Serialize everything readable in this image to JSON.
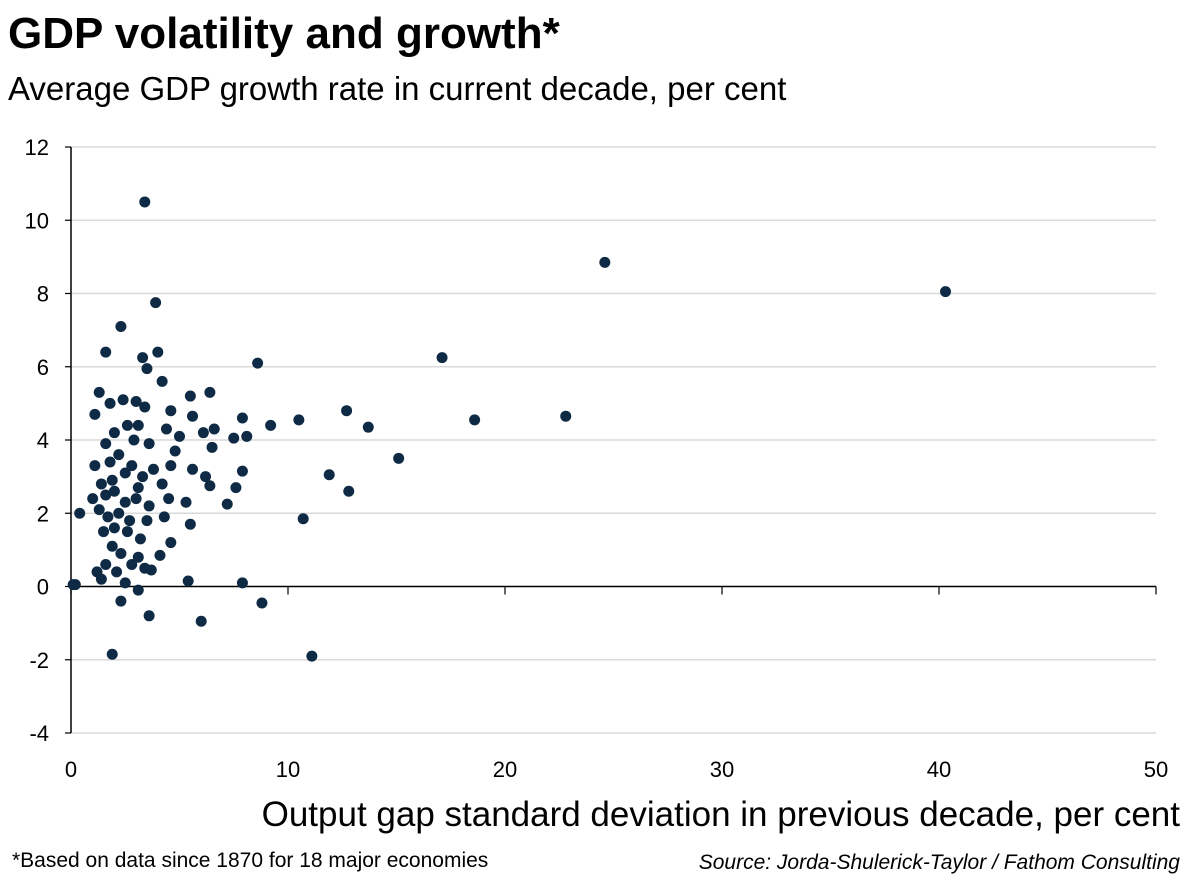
{
  "header": {
    "title": "GDP volatility and growth*",
    "subtitle": "Average GDP growth rate in current decade, per cent"
  },
  "footer": {
    "footnote": "*Based on data since 1870 for 18 major economies",
    "source": "Source: Jorda-Shulerick-Taylor / Fathom Consulting"
  },
  "colors": {
    "point": "#0f2a44",
    "grid": "#d9d9d9",
    "axis": "#000000"
  },
  "chart_data": {
    "type": "scatter",
    "title": "GDP volatility and growth*",
    "subtitle": "Average GDP growth rate in current decade, per cent",
    "xlabel": "Output gap standard deviation in previous decade, per cent",
    "ylabel": "",
    "xlim": [
      0,
      50
    ],
    "ylim": [
      -4,
      12
    ],
    "x_ticks": [
      0,
      10,
      20,
      30,
      40,
      50
    ],
    "y_ticks": [
      -4,
      -2,
      0,
      2,
      4,
      6,
      8,
      10,
      12
    ],
    "grid": "horizontal",
    "legend": "none",
    "series": [
      {
        "points": [
          [
            3.4,
            10.5
          ],
          [
            24.6,
            8.85
          ],
          [
            40.3,
            8.05
          ],
          [
            3.9,
            7.75
          ],
          [
            2.3,
            7.1
          ],
          [
            1.6,
            6.4
          ],
          [
            3.3,
            6.25
          ],
          [
            4.0,
            6.4
          ],
          [
            3.5,
            5.95
          ],
          [
            17.1,
            6.25
          ],
          [
            8.6,
            6.1
          ],
          [
            4.2,
            5.6
          ],
          [
            1.3,
            5.3
          ],
          [
            6.4,
            5.3
          ],
          [
            5.5,
            5.2
          ],
          [
            1.1,
            4.7
          ],
          [
            1.8,
            5.0
          ],
          [
            2.4,
            5.1
          ],
          [
            3.0,
            5.05
          ],
          [
            3.4,
            4.9
          ],
          [
            4.6,
            4.8
          ],
          [
            5.6,
            4.65
          ],
          [
            7.9,
            4.6
          ],
          [
            12.7,
            4.8
          ],
          [
            10.5,
            4.55
          ],
          [
            18.6,
            4.55
          ],
          [
            22.8,
            4.65
          ],
          [
            9.2,
            4.4
          ],
          [
            13.7,
            4.35
          ],
          [
            6.6,
            4.3
          ],
          [
            2.0,
            4.2
          ],
          [
            2.6,
            4.4
          ],
          [
            3.1,
            4.4
          ],
          [
            4.4,
            4.3
          ],
          [
            5.0,
            4.1
          ],
          [
            6.1,
            4.2
          ],
          [
            7.5,
            4.05
          ],
          [
            8.1,
            4.1
          ],
          [
            1.6,
            3.9
          ],
          [
            2.9,
            4.0
          ],
          [
            3.6,
            3.9
          ],
          [
            4.8,
            3.7
          ],
          [
            6.5,
            3.8
          ],
          [
            15.1,
            3.5
          ],
          [
            1.1,
            3.3
          ],
          [
            1.8,
            3.4
          ],
          [
            2.2,
            3.6
          ],
          [
            2.8,
            3.3
          ],
          [
            3.3,
            3.0
          ],
          [
            3.8,
            3.2
          ],
          [
            4.6,
            3.3
          ],
          [
            5.6,
            3.2
          ],
          [
            6.2,
            3.0
          ],
          [
            7.9,
            3.15
          ],
          [
            11.9,
            3.05
          ],
          [
            1.4,
            2.8
          ],
          [
            1.9,
            2.9
          ],
          [
            2.5,
            3.1
          ],
          [
            3.1,
            2.7
          ],
          [
            4.2,
            2.8
          ],
          [
            6.4,
            2.75
          ],
          [
            7.6,
            2.7
          ],
          [
            12.8,
            2.6
          ],
          [
            1.0,
            2.4
          ],
          [
            1.6,
            2.5
          ],
          [
            2.0,
            2.6
          ],
          [
            2.5,
            2.3
          ],
          [
            3.0,
            2.4
          ],
          [
            3.6,
            2.2
          ],
          [
            4.5,
            2.4
          ],
          [
            5.3,
            2.3
          ],
          [
            7.2,
            2.25
          ],
          [
            0.4,
            2.0
          ],
          [
            1.3,
            2.1
          ],
          [
            1.7,
            1.9
          ],
          [
            2.2,
            2.0
          ],
          [
            2.7,
            1.8
          ],
          [
            3.5,
            1.8
          ],
          [
            4.3,
            1.9
          ],
          [
            5.5,
            1.7
          ],
          [
            10.7,
            1.85
          ],
          [
            1.5,
            1.5
          ],
          [
            2.0,
            1.6
          ],
          [
            2.6,
            1.5
          ],
          [
            3.2,
            1.3
          ],
          [
            4.6,
            1.2
          ],
          [
            1.9,
            1.1
          ],
          [
            2.3,
            0.9
          ],
          [
            3.1,
            0.8
          ],
          [
            4.1,
            0.85
          ],
          [
            1.6,
            0.6
          ],
          [
            2.8,
            0.6
          ],
          [
            3.4,
            0.5
          ],
          [
            1.2,
            0.4
          ],
          [
            2.1,
            0.4
          ],
          [
            3.7,
            0.45
          ],
          [
            1.4,
            0.2
          ],
          [
            2.5,
            0.1
          ],
          [
            5.4,
            0.15
          ],
          [
            7.9,
            0.1
          ],
          [
            0.1,
            0.05
          ],
          [
            0.2,
            0.05
          ],
          [
            3.1,
            -0.1
          ],
          [
            8.8,
            -0.45
          ],
          [
            2.3,
            -0.4
          ],
          [
            3.6,
            -0.8
          ],
          [
            6.0,
            -0.95
          ],
          [
            1.9,
            -1.85
          ],
          [
            11.1,
            -1.9
          ]
        ]
      }
    ]
  }
}
